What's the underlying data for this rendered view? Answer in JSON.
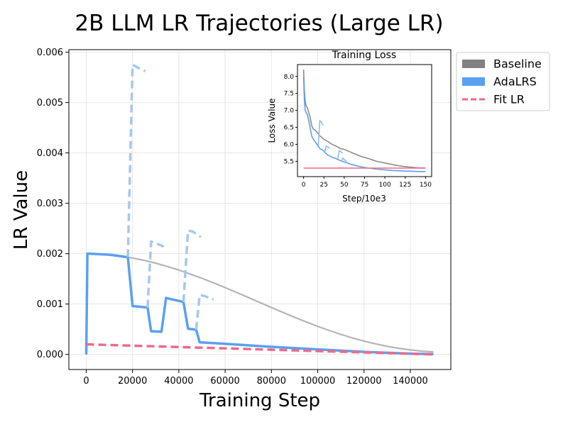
{
  "chart_data": [
    {
      "type": "line",
      "title": "2B LLM LR Trajectories (Large LR)",
      "xlabel": "Training Step",
      "ylabel": "LR Value",
      "xlim": [
        -7500,
        157500
      ],
      "ylim": [
        -0.0003,
        0.00605
      ],
      "xticks": [
        0,
        20000,
        40000,
        60000,
        80000,
        100000,
        120000,
        140000
      ],
      "xtick_labels": [
        "0",
        "20000",
        "40000",
        "60000",
        "80000",
        "100000",
        "120000",
        "140000"
      ],
      "yticks": [
        0,
        0.001,
        0.002,
        0.003,
        0.004,
        0.005,
        0.006
      ],
      "ytick_labels": [
        "0.000",
        "0.001",
        "0.002",
        "0.003",
        "0.004",
        "0.005",
        "0.006"
      ],
      "grid": true,
      "legend_position": "outside upper right",
      "legend": [
        {
          "label": "Baseline",
          "color": "#808080",
          "style": "patch"
        },
        {
          "label": "AdaLRS",
          "color": "#5aa0f0",
          "style": "patch"
        },
        {
          "label": "Fit LR",
          "color": "#ee6a88",
          "style": "dashed"
        }
      ],
      "series": [
        {
          "name": "Baseline",
          "color": "#b4b4b4",
          "style": "solid",
          "x": [
            0,
            500,
            1000,
            5000,
            10000,
            15000,
            20000,
            25000,
            30000,
            35000,
            40000,
            45000,
            50000,
            55000,
            60000,
            65000,
            70000,
            75000,
            80000,
            85000,
            90000,
            95000,
            100000,
            105000,
            110000,
            115000,
            120000,
            125000,
            130000,
            135000,
            140000,
            145000,
            150000
          ],
          "y": [
            0,
            0.002,
            0.002,
            0.001995,
            0.001979,
            0.001951,
            0.001914,
            0.001867,
            0.001811,
            0.001746,
            0.001674,
            0.001595,
            0.00151,
            0.00142,
            0.001326,
            0.001229,
            0.00113,
            0.00103,
            0.000931,
            0.000833,
            0.000737,
            0.000645,
            0.000557,
            0.000474,
            0.000397,
            0.000327,
            0.000264,
            0.000209,
            0.000161,
            0.000121,
            8.9e-05,
            6.5e-05,
            5e-05
          ]
        },
        {
          "name": "AdaLRS",
          "color": "#5aa0f0",
          "style": "solid",
          "x": [
            0,
            500,
            1000,
            10000,
            18000,
            20000,
            26500,
            28000,
            32500,
            34500,
            42000,
            44000,
            47500,
            49000,
            60000,
            80000,
            100000,
            120000,
            140000,
            150000
          ],
          "y": [
            0,
            0.002,
            0.002,
            0.00198,
            0.00193,
            0.00096,
            0.00093,
            0.00046,
            0.00045,
            0.00112,
            0.00104,
            0.00051,
            0.00049,
            0.00024,
            0.00021,
            0.00015,
            0.0001,
            5e-05,
            1.5e-05,
            5e-06
          ]
        },
        {
          "name": "AdaLRS probes",
          "color": "#a6c8f0",
          "style": "dashed",
          "segments": [
            {
              "x": [
                18000,
                20000,
                22000,
                25500
              ],
              "y": [
                0.00193,
                0.00575,
                0.0057,
                0.00562
              ]
            },
            {
              "x": [
                26500,
                28000,
                29500,
                33500
              ],
              "y": [
                0.00093,
                0.00224,
                0.00222,
                0.00214
              ]
            },
            {
              "x": [
                42000,
                44000,
                46000,
                49500
              ],
              "y": [
                0.00104,
                0.00246,
                0.00244,
                0.00233
              ]
            },
            {
              "x": [
                47500,
                49000,
                51000,
                55000
              ],
              "y": [
                0.00049,
                0.00118,
                0.00116,
                0.00109
              ]
            }
          ]
        },
        {
          "name": "Fit LR",
          "color": "#ee6a88",
          "style": "dashed",
          "x": [
            0,
            150000
          ],
          "y": [
            0.0002,
            0.0
          ]
        }
      ]
    },
    {
      "type": "line",
      "title": "Training Loss",
      "xlabel": "Step/10e3",
      "ylabel": "Loss Value",
      "xlim": [
        -7.5,
        157.5
      ],
      "ylim": [
        5.05,
        8.35
      ],
      "xticks": [
        0,
        25,
        50,
        75,
        100,
        125,
        150
      ],
      "xtick_labels": [
        "0",
        "25",
        "50",
        "75",
        "100",
        "125",
        "150"
      ],
      "yticks": [
        5.5,
        6.0,
        6.5,
        7.0,
        7.5,
        8.0
      ],
      "ytick_labels": [
        "5.5",
        "6.0",
        "6.5",
        "7.0",
        "7.5",
        "8.0"
      ],
      "grid": false,
      "series": [
        {
          "name": "Baseline",
          "color": "#8c8c8c",
          "x": [
            0,
            1,
            2,
            3,
            4,
            5,
            8,
            10,
            12,
            15,
            20,
            25,
            30,
            35,
            40,
            45,
            50,
            60,
            70,
            80,
            90,
            100,
            110,
            120,
            130,
            140,
            150
          ],
          "y": [
            8.2,
            7.6,
            7.25,
            7.15,
            7.1,
            7.05,
            6.8,
            6.55,
            6.45,
            6.4,
            6.25,
            6.15,
            6.08,
            6.0,
            5.95,
            5.88,
            5.85,
            5.75,
            5.65,
            5.58,
            5.5,
            5.45,
            5.4,
            5.36,
            5.33,
            5.31,
            5.3
          ]
        },
        {
          "name": "AdaLRS",
          "color": "#5aa0f0",
          "x": [
            0,
            1,
            2,
            3,
            4,
            5,
            8,
            10,
            12,
            15,
            18,
            20,
            22,
            25,
            28,
            30,
            33,
            35,
            40,
            45,
            50,
            55,
            60,
            70,
            80,
            90,
            100,
            110,
            120,
            130,
            140,
            150
          ],
          "y": [
            8.0,
            7.3,
            7.0,
            6.95,
            6.9,
            6.85,
            6.5,
            6.25,
            6.15,
            6.05,
            5.95,
            5.88,
            5.85,
            5.8,
            5.72,
            5.68,
            5.65,
            5.62,
            5.58,
            5.52,
            5.48,
            5.44,
            5.4,
            5.34,
            5.3,
            5.27,
            5.25,
            5.23,
            5.22,
            5.21,
            5.2,
            5.2
          ]
        },
        {
          "name": "AdaLRS probes",
          "color": "#8fbcf2",
          "segments": [
            {
              "x": [
                18,
                20,
                22,
                24
              ],
              "y": [
                5.95,
                6.7,
                6.65,
                6.55
              ]
            },
            {
              "x": [
                26,
                28,
                30,
                32
              ],
              "y": [
                5.78,
                5.95,
                5.92,
                5.88
              ]
            },
            {
              "x": [
                42,
                44,
                46,
                48
              ],
              "y": [
                5.58,
                5.82,
                5.78,
                5.74
              ]
            },
            {
              "x": [
                47,
                48,
                50,
                53
              ],
              "y": [
                5.5,
                5.6,
                5.55,
                5.5
              ]
            }
          ]
        },
        {
          "name": "Fit LR",
          "color": "#ee6a88",
          "x": [
            0,
            150
          ],
          "y": [
            5.3,
            5.3
          ]
        }
      ]
    }
  ]
}
